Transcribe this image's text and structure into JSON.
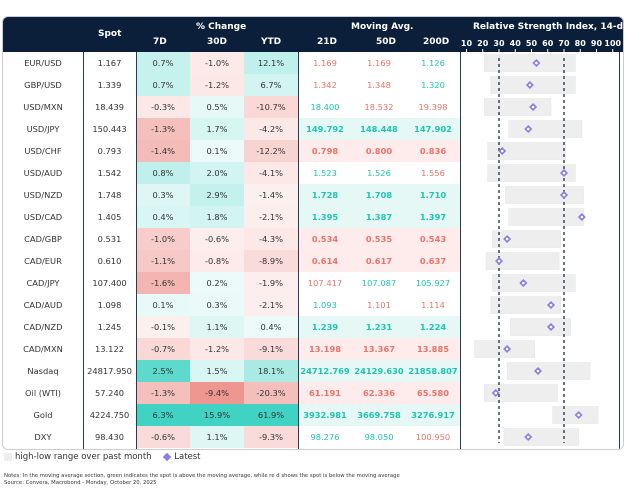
{
  "header": {
    "spot": "Spot",
    "pct_change": "% Change",
    "pct_cols": [
      "7D",
      "30D",
      "YTD"
    ],
    "moving_avg": "Moving Avg.",
    "ma_cols": [
      "21D",
      "50D",
      "200D"
    ],
    "rsi_title": "Relative Strength Index, 14-day",
    "rsi_ticks": [
      "10",
      "20",
      "30",
      "40",
      "50",
      "60",
      "70",
      "80",
      "90",
      "100"
    ]
  },
  "colors": {
    "header_bg": "#0c1f3a",
    "green_text": "#1ec4b0",
    "red_text": "#e8736b",
    "diamond": "#8a7de8",
    "range_bar": "#eeeeee"
  },
  "rows": [
    {
      "name": "EUR/USD",
      "spot": "1.167",
      "d7": "0.7%",
      "d30": "-1.0%",
      "ytd": "12.1%",
      "ma21": "1.169",
      "ma50": "1.169",
      "ma200": "1.126",
      "ma_c": [
        "r",
        "r",
        "g"
      ],
      "ma_bg": "",
      "v": [
        0.7,
        -1.0,
        12.1
      ]
    },
    {
      "name": "GBP/USD",
      "spot": "1.339",
      "d7": "0.7%",
      "d30": "-1.2%",
      "ytd": "6.7%",
      "ma21": "1.342",
      "ma50": "1.348",
      "ma200": "1.320",
      "ma_c": [
        "r",
        "r",
        "g"
      ],
      "ma_bg": "",
      "v": [
        0.7,
        -1.2,
        6.7
      ]
    },
    {
      "name": "USD/MXN",
      "spot": "18.439",
      "d7": "-0.3%",
      "d30": "0.5%",
      "ytd": "-10.7%",
      "ma21": "18.400",
      "ma50": "18.532",
      "ma200": "19.398",
      "ma_c": [
        "g",
        "r",
        "r"
      ],
      "ma_bg": "",
      "v": [
        -0.3,
        0.5,
        -10.7
      ]
    },
    {
      "name": "USD/JPY",
      "spot": "150.443",
      "d7": "-1.3%",
      "d30": "1.7%",
      "ytd": "-4.2%",
      "ma21": "149.792",
      "ma50": "148.448",
      "ma200": "147.902",
      "ma_c": [
        "g",
        "g",
        "g"
      ],
      "ma_bg": "g",
      "v": [
        -1.3,
        1.7,
        -4.2
      ]
    },
    {
      "name": "USD/CHF",
      "spot": "0.793",
      "d7": "-1.4%",
      "d30": "0.1%",
      "ytd": "-12.2%",
      "ma21": "0.798",
      "ma50": "0.800",
      "ma200": "0.836",
      "ma_c": [
        "r",
        "r",
        "r"
      ],
      "ma_bg": "r",
      "v": [
        -1.4,
        0.1,
        -12.2
      ]
    },
    {
      "name": "USD/AUD",
      "spot": "1.542",
      "d7": "0.8%",
      "d30": "2.0%",
      "ytd": "-4.1%",
      "ma21": "1.523",
      "ma50": "1.526",
      "ma200": "1.556",
      "ma_c": [
        "g",
        "g",
        "r"
      ],
      "ma_bg": "",
      "v": [
        0.8,
        2.0,
        -4.1
      ]
    },
    {
      "name": "USD/NZD",
      "spot": "1.748",
      "d7": "0.3%",
      "d30": "2.9%",
      "ytd": "-1.4%",
      "ma21": "1.728",
      "ma50": "1.708",
      "ma200": "1.710",
      "ma_c": [
        "g",
        "g",
        "g"
      ],
      "ma_bg": "g",
      "v": [
        0.3,
        2.9,
        -1.4
      ]
    },
    {
      "name": "USD/CAD",
      "spot": "1.405",
      "d7": "0.4%",
      "d30": "1.8%",
      "ytd": "-2.1%",
      "ma21": "1.395",
      "ma50": "1.387",
      "ma200": "1.397",
      "ma_c": [
        "g",
        "g",
        "g"
      ],
      "ma_bg": "g",
      "v": [
        0.4,
        1.8,
        -2.1
      ]
    },
    {
      "name": "CAD/GBP",
      "spot": "0.531",
      "d7": "-1.0%",
      "d30": "-0.6%",
      "ytd": "-4.3%",
      "ma21": "0.534",
      "ma50": "0.535",
      "ma200": "0.543",
      "ma_c": [
        "r",
        "r",
        "r"
      ],
      "ma_bg": "r",
      "v": [
        -1.0,
        -0.6,
        -4.3
      ]
    },
    {
      "name": "CAD/EUR",
      "spot": "0.610",
      "d7": "-1.1%",
      "d30": "-0.8%",
      "ytd": "-8.9%",
      "ma21": "0.614",
      "ma50": "0.617",
      "ma200": "0.637",
      "ma_c": [
        "r",
        "r",
        "r"
      ],
      "ma_bg": "r",
      "v": [
        -1.1,
        -0.8,
        -8.9
      ]
    },
    {
      "name": "CAD/JPY",
      "spot": "107.400",
      "d7": "-1.6%",
      "d30": "0.2%",
      "ytd": "-1.9%",
      "ma21": "107.417",
      "ma50": "107.087",
      "ma200": "105.927",
      "ma_c": [
        "r",
        "g",
        "g"
      ],
      "ma_bg": "",
      "v": [
        -1.6,
        0.2,
        -1.9
      ]
    },
    {
      "name": "CAD/AUD",
      "spot": "1.098",
      "d7": "0.1%",
      "d30": "0.3%",
      "ytd": "-2.1%",
      "ma21": "1.093",
      "ma50": "1.101",
      "ma200": "1.114",
      "ma_c": [
        "g",
        "r",
        "r"
      ],
      "ma_bg": "",
      "v": [
        0.1,
        0.3,
        -2.1
      ]
    },
    {
      "name": "CAD/NZD",
      "spot": "1.245",
      "d7": "-0.1%",
      "d30": "1.1%",
      "ytd": "0.4%",
      "ma21": "1.239",
      "ma50": "1.231",
      "ma200": "1.224",
      "ma_c": [
        "g",
        "g",
        "g"
      ],
      "ma_bg": "g",
      "v": [
        -0.1,
        1.1,
        0.4
      ]
    },
    {
      "name": "CAD/MXN",
      "spot": "13.122",
      "d7": "-0.7%",
      "d30": "-1.2%",
      "ytd": "-9.1%",
      "ma21": "13.198",
      "ma50": "13.367",
      "ma200": "13.885",
      "ma_c": [
        "r",
        "r",
        "r"
      ],
      "ma_bg": "r",
      "v": [
        -0.7,
        -1.2,
        -9.1
      ]
    },
    {
      "name": "Nasdaq",
      "spot": "24817.950",
      "d7": "2.5%",
      "d30": "1.5%",
      "ytd": "18.1%",
      "ma21": "24712.769",
      "ma50": "24129.630",
      "ma200": "21858.807",
      "ma_c": [
        "g",
        "g",
        "g"
      ],
      "ma_bg": "g",
      "v": [
        2.5,
        1.5,
        18.1
      ]
    },
    {
      "name": "Oil (WTI)",
      "spot": "57.240",
      "d7": "-1.3%",
      "d30": "-9.4%",
      "ytd": "-20.3%",
      "ma21": "61.191",
      "ma50": "62.336",
      "ma200": "65.580",
      "ma_c": [
        "r",
        "r",
        "r"
      ],
      "ma_bg": "r",
      "v": [
        -1.3,
        -9.4,
        -20.3
      ]
    },
    {
      "name": "Gold",
      "spot": "4224.750",
      "d7": "6.3%",
      "d30": "15.9%",
      "ytd": "61.9%",
      "ma21": "3932.981",
      "ma50": "3669.758",
      "ma200": "3276.917",
      "ma_c": [
        "g",
        "g",
        "g"
      ],
      "ma_bg": "g",
      "v": [
        6.3,
        15.9,
        61.9
      ]
    },
    {
      "name": "DXY",
      "spot": "98.430",
      "d7": "-0.6%",
      "d30": "1.1%",
      "ytd": "-9.3%",
      "ma21": "98.276",
      "ma50": "98.050",
      "ma200": "100.950",
      "ma_c": [
        "g",
        "g",
        "r"
      ],
      "ma_bg": "",
      "v": [
        -0.6,
        1.1,
        -9.3
      ]
    }
  ],
  "chart_data": {
    "type": "table",
    "title": "Relative Strength Index, 14-day",
    "xlim": [
      10,
      100
    ],
    "reference_lines": [
      30,
      70
    ],
    "series": [
      {
        "name": "high-low range over past month",
        "type": "range"
      },
      {
        "name": "Latest",
        "type": "point"
      }
    ],
    "rsi": [
      {
        "name": "EUR/USD",
        "low": 21,
        "high": 77,
        "latest": 53
      },
      {
        "name": "GBP/USD",
        "low": 25,
        "high": 77,
        "latest": 49
      },
      {
        "name": "USD/MXN",
        "low": 21,
        "high": 62,
        "latest": 51
      },
      {
        "name": "USD/JPY",
        "low": 36,
        "high": 81,
        "latest": 48
      },
      {
        "name": "USD/CHF",
        "low": 23,
        "high": 71,
        "latest": 32
      },
      {
        "name": "USD/AUD",
        "low": 23,
        "high": 77,
        "latest": 70
      },
      {
        "name": "USD/NZD",
        "low": 34,
        "high": 82,
        "latest": 70
      },
      {
        "name": "USD/CAD",
        "low": 36,
        "high": 82,
        "latest": 81
      },
      {
        "name": "CAD/GBP",
        "low": 26,
        "high": 68,
        "latest": 35
      },
      {
        "name": "CAD/EUR",
        "low": 22,
        "high": 67,
        "latest": 30
      },
      {
        "name": "CAD/JPY",
        "low": 26,
        "high": 77,
        "latest": 45
      },
      {
        "name": "CAD/AUD",
        "low": 25,
        "high": 68,
        "latest": 62
      },
      {
        "name": "CAD/NZD",
        "low": 37,
        "high": 74,
        "latest": 62
      },
      {
        "name": "CAD/MXN",
        "low": 15,
        "high": 52,
        "latest": 35
      },
      {
        "name": "Nasdaq",
        "low": 35,
        "high": 86,
        "latest": 54
      },
      {
        "name": "Oil (WTI)",
        "low": 21,
        "high": 66,
        "latest": 28
      },
      {
        "name": "Gold",
        "low": 63,
        "high": 91,
        "latest": 79
      },
      {
        "name": "DXY",
        "low": 33,
        "high": 79,
        "latest": 48
      }
    ]
  },
  "legend": {
    "range_label": "high-low range over past month",
    "latest_label": "Latest"
  },
  "footer": {
    "notes": "Notes: In the moving average section, green indicates the spot is above the moving average, while re   d shows the spot is below  the moving average",
    "source": "Source: Convera, Macrobond - Monday, October 20, 2025"
  }
}
